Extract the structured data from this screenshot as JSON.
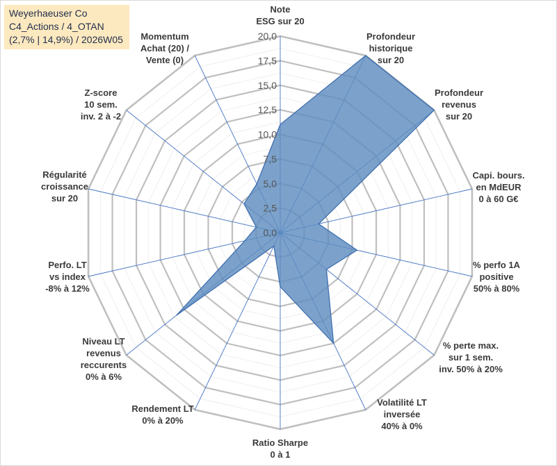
{
  "title": {
    "lines": [
      "Weyerhaeuser Co",
      "C4_Actions / 4_OTAN",
      "(2,7% | 14,9%) / 2026W05"
    ]
  },
  "chart_data": {
    "type": "radar",
    "rmin": 0,
    "rmax": 20,
    "ticks": [
      0,
      2.5,
      5,
      7.5,
      10,
      12.5,
      15,
      17.5,
      20
    ],
    "tick_labels": [
      "0,0",
      "2,5",
      "5,0",
      "7,5",
      "10,0",
      "12,5",
      "15,0",
      "17,5",
      "20,0"
    ],
    "colors": {
      "fill": "#5f8ec0",
      "stroke": "#3f6fb0",
      "grid": "#bfbfbf",
      "spoke": "#4472c4"
    },
    "axes": [
      {
        "label": [
          "Note",
          "ESG sur 20"
        ],
        "value": 11
      },
      {
        "label": [
          "Profondeur",
          "historique",
          "sur 20"
        ],
        "value": 20
      },
      {
        "label": [
          "Profondeur",
          "revenus",
          "sur 20"
        ],
        "value": 20
      },
      {
        "label": [
          "Capi. bours.",
          "en MdEUR",
          "0 à 60 G€"
        ],
        "value": 4
      },
      {
        "label": [
          "% perfo 1A",
          "positive",
          "50% à 80%"
        ],
        "value": 8
      },
      {
        "label": [
          "% perte max.",
          "sur 1 sem.",
          "inv. 50% à 20%"
        ],
        "value": 6
      },
      {
        "label": [
          "Volatilité LT",
          "inversée",
          "40% à 0%"
        ],
        "value": 12.5
      },
      {
        "label": [
          "Ratio Sharpe",
          "0 à 1"
        ],
        "value": 5.5
      },
      {
        "label": [
          "Rendement LT",
          "0% à 20%"
        ],
        "value": 1.5
      },
      {
        "label": [
          "Niveau LT",
          "revenus",
          "reccurents",
          "0% à 6%"
        ],
        "value": 13.5
      },
      {
        "label": [
          "Perfo. LT",
          "vs index",
          "-8% à 12%"
        ],
        "value": 3.7
      },
      {
        "label": [
          "Régularité",
          "croissance",
          "sur 20"
        ],
        "value": 2.5
      },
      {
        "label": [
          "Z-score",
          "10 sem.",
          "inv. 2 à -2"
        ],
        "value": 4.7
      },
      {
        "label": [
          "Momentum",
          "Achat (20) /",
          "Vente (0)"
        ],
        "value": 5.5
      }
    ]
  }
}
